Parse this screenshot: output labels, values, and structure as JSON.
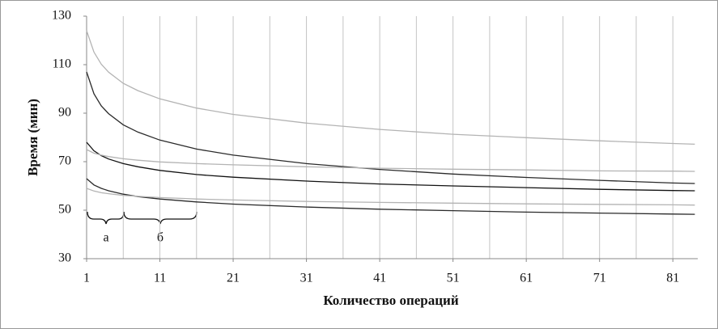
{
  "chart_data": {
    "type": "line",
    "x_label": "Количество операций",
    "y_label": "Время (мин)",
    "x": [
      1,
      2,
      3,
      4,
      6,
      8,
      11,
      16,
      21,
      31,
      41,
      51,
      61,
      71,
      81,
      84
    ],
    "series": [
      {
        "color": "#b3b3b3",
        "values": [
          124,
          115.2,
          110.2,
          106.9,
          102.3,
          99.3,
          95.9,
          92.1,
          89.5,
          85.9,
          83.3,
          81.3,
          79.9,
          78.6,
          77.5,
          77.2
        ]
      },
      {
        "color": "#2a2a2a",
        "values": [
          107,
          98,
          93,
          89.8,
          85.2,
          82.2,
          78.9,
          75.2,
          72.7,
          69.2,
          66.8,
          64.9,
          63.5,
          62.3,
          61.2,
          61.0
        ]
      },
      {
        "color": "#111111",
        "values": [
          78,
          74.5,
          72.5,
          71.1,
          69.2,
          67.9,
          66.4,
          64.7,
          63.6,
          62.0,
          60.8,
          60.0,
          59.3,
          58.6,
          58.1,
          58.0
        ]
      },
      {
        "color": "#b3b3b3",
        "values": [
          75,
          73.5,
          72.7,
          72.1,
          71.2,
          70.6,
          69.9,
          69.2,
          68.7,
          67.9,
          67.3,
          66.9,
          66.6,
          66.2,
          66.1,
          66.0
        ]
      },
      {
        "color": "#2a2a2a",
        "values": [
          63,
          60.4,
          59,
          58,
          56.6,
          55.6,
          54.6,
          53.4,
          52.5,
          51.3,
          50.4,
          49.8,
          49.2,
          48.8,
          48.4,
          48.3
        ]
      },
      {
        "color": "#b3b3b3",
        "values": [
          59,
          57.9,
          57.2,
          56.8,
          56.1,
          55.7,
          55.2,
          54.6,
          54.2,
          53.6,
          53.2,
          52.9,
          52.6,
          52.4,
          52.2,
          52.1
        ]
      }
    ],
    "xlim": [
      1,
      84.4
    ],
    "ylim": [
      30,
      130
    ],
    "xticks": [
      1,
      11,
      21,
      31,
      41,
      51,
      61,
      71,
      81
    ],
    "x_gridlines": [
      6,
      11,
      16,
      21,
      26,
      31,
      36,
      41,
      46,
      51,
      56,
      61,
      66,
      71,
      76,
      81
    ],
    "yticks": [
      30,
      50,
      70,
      90,
      110,
      130
    ],
    "annotations": [
      "а",
      "б"
    ]
  }
}
